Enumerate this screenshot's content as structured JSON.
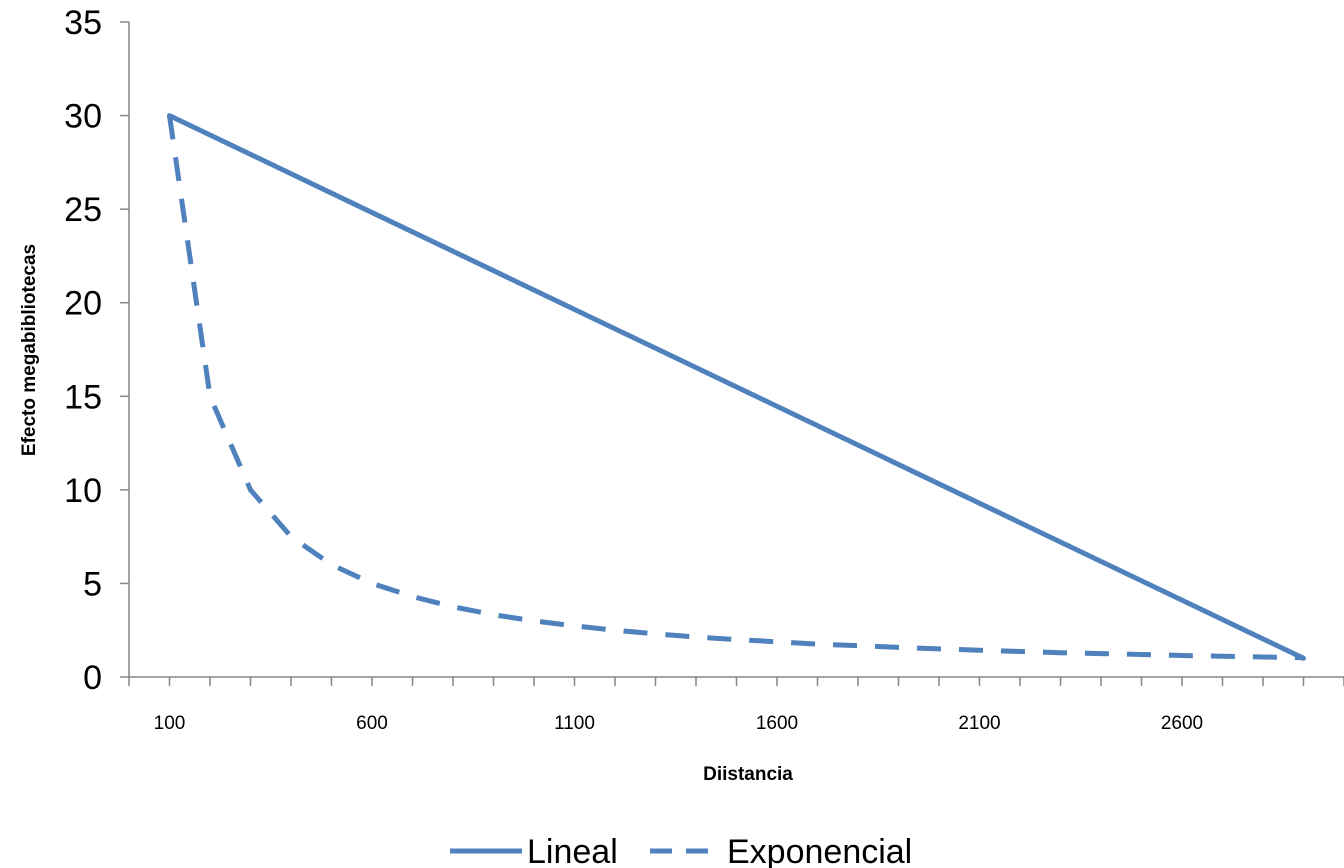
{
  "chart_data": {
    "type": "line",
    "title": "",
    "xlabel": "Diistancia",
    "ylabel": "Efecto megabibliotecas",
    "xlim": [
      0,
      3000
    ],
    "ylim": [
      0,
      35
    ],
    "x_ticks_labeled": [
      100,
      600,
      1100,
      1600,
      2100,
      2600
    ],
    "x_tick_labels": [
      "100",
      "600",
      "1100",
      "1600",
      "2100",
      "2600"
    ],
    "y_ticks": [
      0,
      5,
      10,
      15,
      20,
      25,
      30,
      35
    ],
    "y_tick_labels": [
      "0",
      "5",
      "10",
      "15",
      "20",
      "25",
      "30",
      "35"
    ],
    "grid": false,
    "legend_position": "bottom",
    "series": [
      {
        "name": "Lineal",
        "style": "solid",
        "color": "#4f81bd",
        "x": [
          100,
          2900
        ],
        "y": [
          30,
          1
        ]
      },
      {
        "name": "Exponencial",
        "style": "dashed",
        "color": "#4f81bd",
        "x": [
          100,
          200,
          300,
          400,
          500,
          600,
          700,
          800,
          900,
          1000,
          1100,
          1200,
          1300,
          1400,
          1500,
          1600,
          1700,
          1800,
          1900,
          2000,
          2100,
          2200,
          2300,
          2400,
          2500,
          2600,
          2700,
          2800,
          2900
        ],
        "y": [
          30,
          15,
          10,
          7.5,
          6,
          5,
          4.3,
          3.75,
          3.33,
          3,
          2.73,
          2.5,
          2.31,
          2.14,
          2,
          1.88,
          1.76,
          1.67,
          1.58,
          1.5,
          1.43,
          1.36,
          1.3,
          1.25,
          1.2,
          1.15,
          1.11,
          1.07,
          1.03
        ]
      }
    ]
  }
}
